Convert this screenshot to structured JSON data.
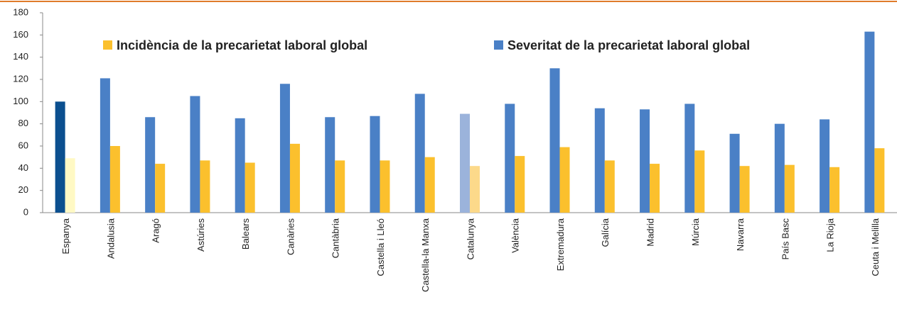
{
  "chart_data": {
    "type": "bar",
    "categories": [
      "Espanya",
      "Andalusia",
      "Aragó",
      "Astúries",
      "Balears",
      "Canàries",
      "Cantàbria",
      "Castella i Lleó",
      "Castella-la Manxa",
      "Catalunya",
      "València",
      "Extremadura",
      "Galícia",
      "Madrid",
      "Múrcia",
      "Navarra",
      "País Basc",
      "La Rioja",
      "Ceuta i Melilla"
    ],
    "series": [
      {
        "name": "Severitat de la precarietat laboral global",
        "color": "#4a80c6",
        "colors": [
          "#0b4f8f",
          "#4a80c6",
          "#4a80c6",
          "#4a80c6",
          "#4a80c6",
          "#4a80c6",
          "#4a80c6",
          "#4a80c6",
          "#4a80c6",
          "#9bb3db",
          "#4a80c6",
          "#4a80c6",
          "#4a80c6",
          "#4a80c6",
          "#4a80c6",
          "#4a80c6",
          "#4a80c6",
          "#4a80c6",
          "#4a80c6"
        ],
        "values": [
          100,
          121,
          86,
          105,
          85,
          116,
          86,
          87,
          107,
          89,
          98,
          130,
          94,
          93,
          98,
          71,
          80,
          84,
          163
        ]
      },
      {
        "name": "Incidència de la precarietat laboral global",
        "color": "#fbc02d",
        "colors": [
          "#fff9c4",
          "#fbc02d",
          "#fbc02d",
          "#fbc02d",
          "#fbc02d",
          "#fbc02d",
          "#fbc02d",
          "#fbc02d",
          "#fbc02d",
          "#fcd98a",
          "#fbc02d",
          "#fbc02d",
          "#fbc02d",
          "#fbc02d",
          "#fbc02d",
          "#fbc02d",
          "#fbc02d",
          "#fbc02d",
          "#fbc02d"
        ],
        "values": [
          49,
          60,
          44,
          47,
          45,
          62,
          47,
          47,
          50,
          42,
          51,
          59,
          47,
          44,
          56,
          42,
          43,
          41,
          58
        ]
      }
    ],
    "ylim": [
      0,
      180
    ],
    "yticks": [
      0,
      20,
      40,
      60,
      80,
      100,
      120,
      140,
      160,
      180
    ]
  }
}
